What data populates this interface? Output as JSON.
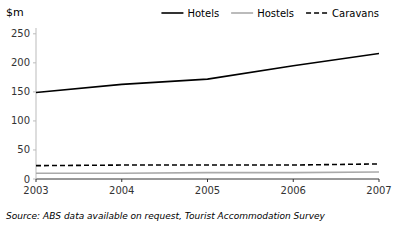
{
  "chart_data": {
    "type": "line",
    "ylabel": "$m",
    "x": [
      2003,
      2004,
      2005,
      2006,
      2007
    ],
    "series": [
      {
        "name": "Hotels",
        "color": "#000000",
        "line_style": "solid",
        "values": [
          149,
          163,
          172,
          195,
          216
        ]
      },
      {
        "name": "Hostels",
        "color": "#aaaaaa",
        "line_style": "solid",
        "values": [
          10,
          10,
          11,
          11,
          12
        ]
      },
      {
        "name": "Caravans",
        "color": "#000000",
        "line_style": "dashed",
        "values": [
          23,
          24,
          24,
          24,
          26
        ]
      }
    ],
    "xlim": [
      2003,
      2007
    ],
    "xticks": [
      2003,
      2004,
      2005,
      2006,
      2007
    ],
    "ylim": [
      0,
      260
    ],
    "yticks": [
      0,
      50,
      100,
      150,
      200,
      250
    ],
    "grid": false,
    "legend": "top",
    "annotations": [
      "Source: ABS data available on request, Tourist Accommodation Survey"
    ]
  }
}
